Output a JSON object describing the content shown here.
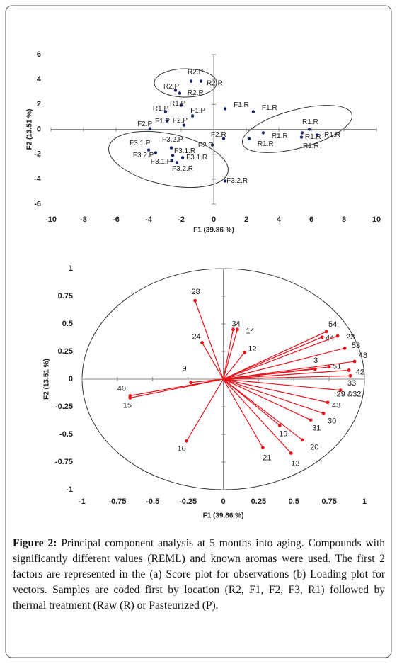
{
  "chart_data": [
    {
      "type": "scatter",
      "xlabel": "F1 (39.86 %)",
      "ylabel": "F2 (13.51 %)",
      "color": "#1a2466",
      "xlim": [
        -10,
        10
      ],
      "ylim": [
        -6,
        6
      ],
      "xticks": [
        -10,
        -8,
        -6,
        -4,
        -2,
        0,
        2,
        4,
        6,
        8,
        10
      ],
      "yticks": [
        -6,
        -4,
        -2,
        0,
        2,
        4,
        6
      ],
      "x": [
        -1.39,
        -0.78,
        -2.35,
        -2.09,
        -2.96,
        -2.0,
        -1.3,
        -2.87,
        -1.83,
        -3.91,
        0.7,
        2.43,
        0.61,
        -0.09,
        5.87,
        3.04,
        2.17,
        5.43,
        6.35,
        5.39,
        -4.0,
        -2.61,
        -2.52,
        -3.57,
        -2.57,
        -1.91,
        -2.26,
        0.7
      ],
      "values": [
        3.86,
        3.86,
        3.13,
        2.9,
        1.42,
        1.93,
        1.08,
        0.68,
        0.34,
        0.06,
        1.65,
        1.42,
        -0.74,
        -1.25,
        0.0,
        -0.28,
        -0.74,
        -0.28,
        -0.45,
        -0.63,
        -1.65,
        -1.48,
        -2.1,
        -1.88,
        -2.5,
        -2.27,
        -2.67,
        -4.15
      ],
      "point_labels": [
        "R2.P",
        "R2.R",
        "R2.P",
        "R2.R",
        "R1.P",
        "R1.P",
        "F1.P",
        "F1.P",
        "F2.P",
        "F2.P",
        "F1.R",
        "F1.R",
        "F2.R",
        "F2.R",
        "R1.R",
        "R1.R",
        "R1.R",
        "R1.R",
        "R1.R",
        "R1.R",
        "F3.1.P",
        "F3.2.P",
        "F3.1.R",
        "F3.2.P",
        "F3.1.P",
        "F3.1.R",
        "F3.2.R",
        "F3.2.R"
      ]
    },
    {
      "type": "vector",
      "xlabel": "F1 (39.86 %)",
      "ylabel": "F2 (13.51 %)",
      "color": "#e8141c",
      "xlim": [
        -1,
        1
      ],
      "ylim": [
        -1,
        1
      ],
      "xticks": [
        -1,
        -0.75,
        -0.5,
        -0.25,
        0,
        0.25,
        0.5,
        0.75,
        1
      ],
      "yticks": [
        -1,
        -0.75,
        -0.5,
        -0.25,
        0,
        0.25,
        0.5,
        0.75,
        1
      ],
      "x": [
        -0.2,
        -0.15,
        0.07,
        0.1,
        0.15,
        -0.23,
        -0.66,
        -0.66,
        -0.26,
        0.73,
        0.7,
        0.81,
        0.86,
        0.93,
        0.65,
        0.75,
        0.89,
        0.9,
        0.83,
        0.74,
        0.71,
        0.62,
        0.4,
        0.56,
        0.28,
        0.48
      ],
      "values": [
        0.71,
        0.33,
        0.45,
        0.45,
        0.24,
        -0.03,
        -0.15,
        -0.17,
        -0.56,
        0.43,
        0.38,
        0.39,
        0.28,
        0.16,
        0.09,
        0.11,
        0.08,
        0.03,
        -0.1,
        -0.21,
        -0.31,
        -0.37,
        -0.42,
        -0.55,
        -0.62,
        -0.67
      ],
      "point_labels": [
        "28",
        "24",
        "34",
        "14",
        "12",
        "9",
        "40",
        "15",
        "10",
        "54",
        "44",
        "23",
        "53",
        "48",
        "3",
        "51",
        "42",
        "33",
        "29 &32",
        "43",
        "30",
        "31",
        "19",
        "20",
        "21",
        "13"
      ]
    }
  ],
  "caption": {
    "label": "Figure 2:",
    "text": "Principal component analysis at 5 months into aging. Compounds with significantly different values (REML) and known aromas were used. The first 2 factors are represented in the (a) Score plot for observations (b) Loading plot for vectors. Samples are coded first by location (R2, F1, F2, F3, R1) followed by thermal treatment (Raw (R) or Pasteurized (P)."
  }
}
